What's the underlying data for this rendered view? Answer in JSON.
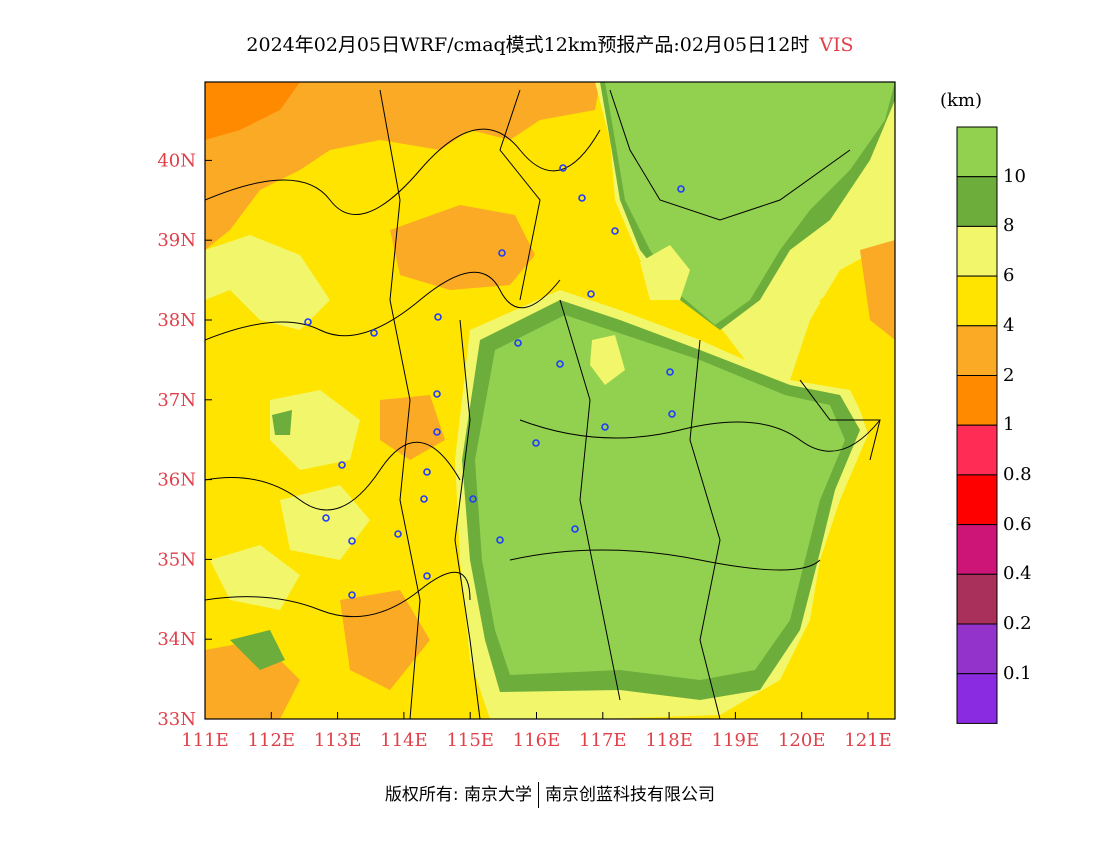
{
  "title": "2024年02月05日WRF/cmaq模式12km预报产品:02月05日12时",
  "variable": "VIS",
  "unit": "(km)",
  "copyright": {
    "owner1": "版权所有: 南京大学",
    "owner2": "南京创蓝科技有限公司"
  },
  "colors": {
    "tick_label": "#e0404a"
  },
  "axes": {
    "lon_labels": [
      "111E",
      "112E",
      "113E",
      "114E",
      "115E",
      "116E",
      "117E",
      "118E",
      "119E",
      "120E",
      "121E"
    ],
    "lat_labels": [
      "33N",
      "34N",
      "35N",
      "36N",
      "37N",
      "38N",
      "39N",
      "40N"
    ]
  },
  "legend": {
    "levels": [
      {
        "label": "10",
        "color": "#92d050"
      },
      {
        "label": "8",
        "color": "#6cad3c"
      },
      {
        "label": "6",
        "color": "#f2f66a"
      },
      {
        "label": "4",
        "color": "#ffe400"
      },
      {
        "label": "2",
        "color": "#fbaa25"
      },
      {
        "label": "1",
        "color": "#ff8a00"
      },
      {
        "label": "0.8",
        "color": "#ff2d55"
      },
      {
        "label": "0.6",
        "color": "#ff0000"
      },
      {
        "label": "0.4",
        "color": "#cc1577"
      },
      {
        "label": "0.2",
        "color": "#a8305a"
      },
      {
        "label": "0.1",
        "color": "#9433cc"
      },
      {
        "label": "",
        "color": "#8a2be2"
      }
    ]
  }
}
